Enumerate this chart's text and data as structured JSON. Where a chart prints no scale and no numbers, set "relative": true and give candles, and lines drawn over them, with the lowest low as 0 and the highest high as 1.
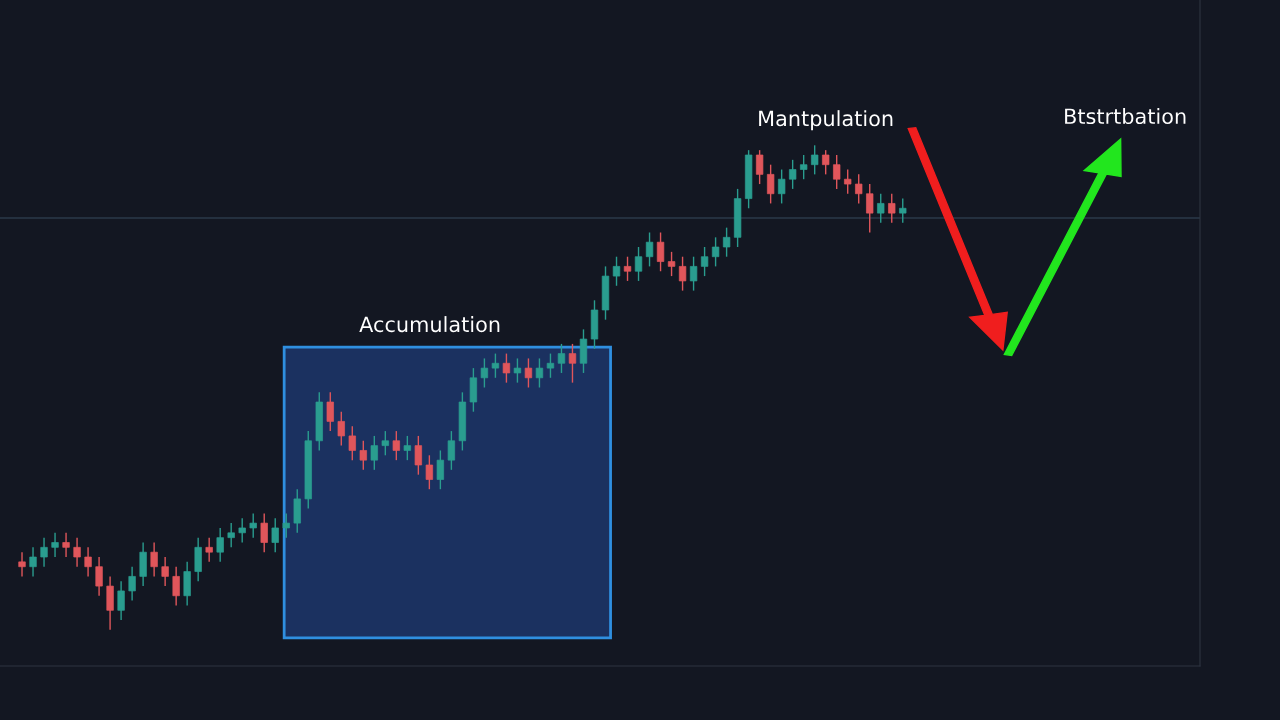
{
  "chart_data": {
    "type": "candlestick",
    "relative": true,
    "categories": [
      null,
      null,
      null,
      null,
      null,
      null,
      null,
      null,
      null,
      null,
      null,
      null,
      null,
      null,
      null,
      null,
      null,
      null,
      null,
      null,
      null,
      null,
      null,
      null,
      null,
      null,
      null,
      null,
      null,
      null,
      null,
      null,
      null,
      null,
      null,
      null,
      null,
      null,
      null,
      null,
      null,
      null,
      null,
      null,
      null,
      null,
      null,
      null,
      null,
      null,
      null,
      null,
      null,
      null,
      null,
      null,
      null,
      null,
      null,
      null,
      null,
      null,
      null,
      null,
      null,
      null,
      null,
      null,
      null,
      null,
      null,
      null,
      null,
      null,
      null,
      null,
      null,
      null,
      null,
      null,
      null,
      null,
      null,
      null,
      null,
      null,
      null,
      null,
      null,
      null,
      null,
      null,
      null,
      null,
      null,
      null,
      null,
      null,
      null,
      null,
      null,
      null,
      null,
      null,
      null,
      null,
      null,
      null
    ],
    "ohlc": [
      null,
      [
        0.14,
        0.16,
        0.11,
        0.13
      ],
      [
        0.13,
        0.17,
        0.11,
        0.15
      ],
      [
        0.15,
        0.19,
        0.13,
        0.17
      ],
      [
        0.17,
        0.2,
        0.15,
        0.18
      ],
      [
        0.18,
        0.2,
        0.15,
        0.17
      ],
      [
        0.17,
        0.19,
        0.13,
        0.15
      ],
      [
        0.15,
        0.17,
        0.11,
        0.13
      ],
      [
        0.13,
        0.15,
        0.07,
        0.09
      ],
      [
        0.09,
        0.11,
        0.0,
        0.04
      ],
      [
        0.04,
        0.1,
        0.02,
        0.08
      ],
      [
        0.08,
        0.13,
        0.06,
        0.11
      ],
      [
        0.11,
        0.18,
        0.09,
        0.16
      ],
      [
        0.16,
        0.18,
        0.11,
        0.13
      ],
      [
        0.13,
        0.15,
        0.09,
        0.11
      ],
      [
        0.11,
        0.13,
        0.05,
        0.07
      ],
      [
        0.07,
        0.14,
        0.05,
        0.12
      ],
      [
        0.12,
        0.19,
        0.1,
        0.17
      ],
      [
        0.17,
        0.19,
        0.14,
        0.16
      ],
      [
        0.16,
        0.21,
        0.14,
        0.19
      ],
      [
        0.19,
        0.22,
        0.17,
        0.2
      ],
      [
        0.2,
        0.23,
        0.18,
        0.21
      ],
      [
        0.21,
        0.24,
        0.19,
        0.22
      ],
      [
        0.22,
        0.24,
        0.16,
        0.18
      ],
      [
        0.18,
        0.23,
        0.16,
        0.21
      ],
      [
        0.21,
        0.24,
        0.19,
        0.22
      ],
      [
        0.22,
        0.29,
        0.2,
        0.27
      ],
      [
        0.27,
        0.41,
        0.25,
        0.39
      ],
      [
        0.39,
        0.49,
        0.37,
        0.47
      ],
      [
        0.47,
        0.49,
        0.41,
        0.43
      ],
      [
        0.43,
        0.45,
        0.38,
        0.4
      ],
      [
        0.4,
        0.42,
        0.35,
        0.37
      ],
      [
        0.37,
        0.39,
        0.33,
        0.35
      ],
      [
        0.35,
        0.4,
        0.33,
        0.38
      ],
      [
        0.38,
        0.41,
        0.36,
        0.39
      ],
      [
        0.39,
        0.41,
        0.35,
        0.37
      ],
      [
        0.37,
        0.4,
        0.35,
        0.38
      ],
      [
        0.38,
        0.4,
        0.32,
        0.34
      ],
      [
        0.34,
        0.36,
        0.29,
        0.31
      ],
      [
        0.31,
        0.37,
        0.29,
        0.35
      ],
      [
        0.35,
        0.41,
        0.33,
        0.39
      ],
      [
        0.39,
        0.49,
        0.37,
        0.47
      ],
      [
        0.47,
        0.54,
        0.45,
        0.52
      ],
      [
        0.52,
        0.56,
        0.5,
        0.54
      ],
      [
        0.54,
        0.57,
        0.52,
        0.55
      ],
      [
        0.55,
        0.57,
        0.51,
        0.53
      ],
      [
        0.53,
        0.56,
        0.51,
        0.54
      ],
      [
        0.54,
        0.56,
        0.5,
        0.52
      ],
      [
        0.52,
        0.56,
        0.5,
        0.54
      ],
      [
        0.54,
        0.57,
        0.52,
        0.55
      ],
      [
        0.55,
        0.59,
        0.53,
        0.57
      ],
      [
        0.57,
        0.59,
        0.51,
        0.55
      ],
      [
        0.55,
        0.62,
        0.53,
        0.6
      ],
      [
        0.6,
        0.68,
        0.58,
        0.66
      ],
      [
        0.66,
        0.75,
        0.64,
        0.73
      ],
      [
        0.73,
        0.77,
        0.71,
        0.75
      ],
      [
        0.75,
        0.77,
        0.72,
        0.74
      ],
      [
        0.74,
        0.79,
        0.72,
        0.77
      ],
      [
        0.77,
        0.82,
        0.75,
        0.8
      ],
      [
        0.8,
        0.82,
        0.74,
        0.76
      ],
      [
        0.76,
        0.78,
        0.73,
        0.75
      ],
      [
        0.75,
        0.77,
        0.7,
        0.72
      ],
      [
        0.72,
        0.77,
        0.7,
        0.75
      ],
      [
        0.75,
        0.79,
        0.73,
        0.77
      ],
      [
        0.77,
        0.81,
        0.75,
        0.79
      ],
      [
        0.79,
        0.83,
        0.77,
        0.81
      ],
      [
        0.81,
        0.91,
        0.79,
        0.89
      ],
      [
        0.89,
        0.99,
        0.87,
        0.98
      ],
      [
        0.98,
        0.99,
        0.92,
        0.94
      ],
      [
        0.94,
        0.96,
        0.88,
        0.9
      ],
      [
        0.9,
        0.95,
        0.88,
        0.93
      ],
      [
        0.93,
        0.97,
        0.91,
        0.95
      ],
      [
        0.95,
        0.98,
        0.93,
        0.96
      ],
      [
        0.96,
        1.0,
        0.94,
        0.98
      ],
      [
        0.98,
        0.99,
        0.94,
        0.96
      ],
      [
        0.96,
        0.98,
        0.91,
        0.93
      ],
      [
        0.93,
        0.95,
        0.9,
        0.92
      ],
      [
        0.92,
        0.94,
        0.88,
        0.9
      ],
      [
        0.9,
        0.92,
        0.82,
        0.86
      ],
      [
        0.86,
        0.9,
        0.84,
        0.88
      ],
      [
        0.88,
        0.9,
        0.84,
        0.86
      ],
      [
        0.86,
        0.89,
        0.84,
        0.87
      ],
      null,
      null,
      null,
      null,
      null,
      null,
      null,
      null,
      null,
      null,
      null,
      null,
      null,
      null,
      null,
      null,
      null,
      null,
      null,
      null,
      null,
      null,
      null,
      null,
      null,
      null
    ],
    "ref_lines": [
      {
        "axis": "y",
        "value": 0.85,
        "color": "#2b3a4a"
      }
    ],
    "annotations": [
      "Accumulation",
      "Mantpulation",
      "Btstrtbation"
    ]
  }
}
